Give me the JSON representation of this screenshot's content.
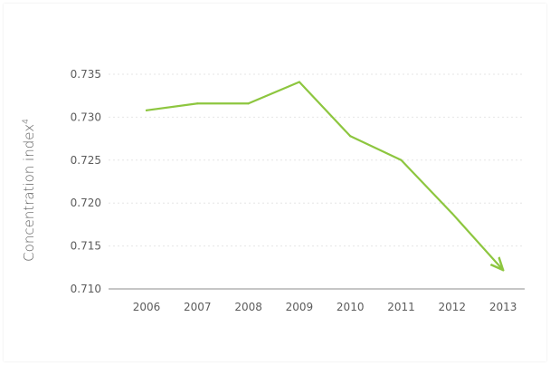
{
  "chart_data": {
    "type": "line",
    "title": "",
    "xlabel": "",
    "ylabel": "Concentration index",
    "ylabel_superscript": "4",
    "categories": [
      "2006",
      "2007",
      "2008",
      "2009",
      "2010",
      "2011",
      "2012",
      "2013"
    ],
    "series": [
      {
        "values": [
          0.7308,
          0.7316,
          0.7316,
          0.7341,
          0.7278,
          0.725,
          0.7188,
          0.7122
        ],
        "color": "#8dc63f"
      }
    ],
    "ylim": [
      0.71,
      0.735
    ],
    "yticks": [
      "0.735",
      "0.730",
      "0.725",
      "0.720",
      "0.715",
      "0.710"
    ],
    "grid": true,
    "legend": "none",
    "end_marker": "arrow"
  }
}
